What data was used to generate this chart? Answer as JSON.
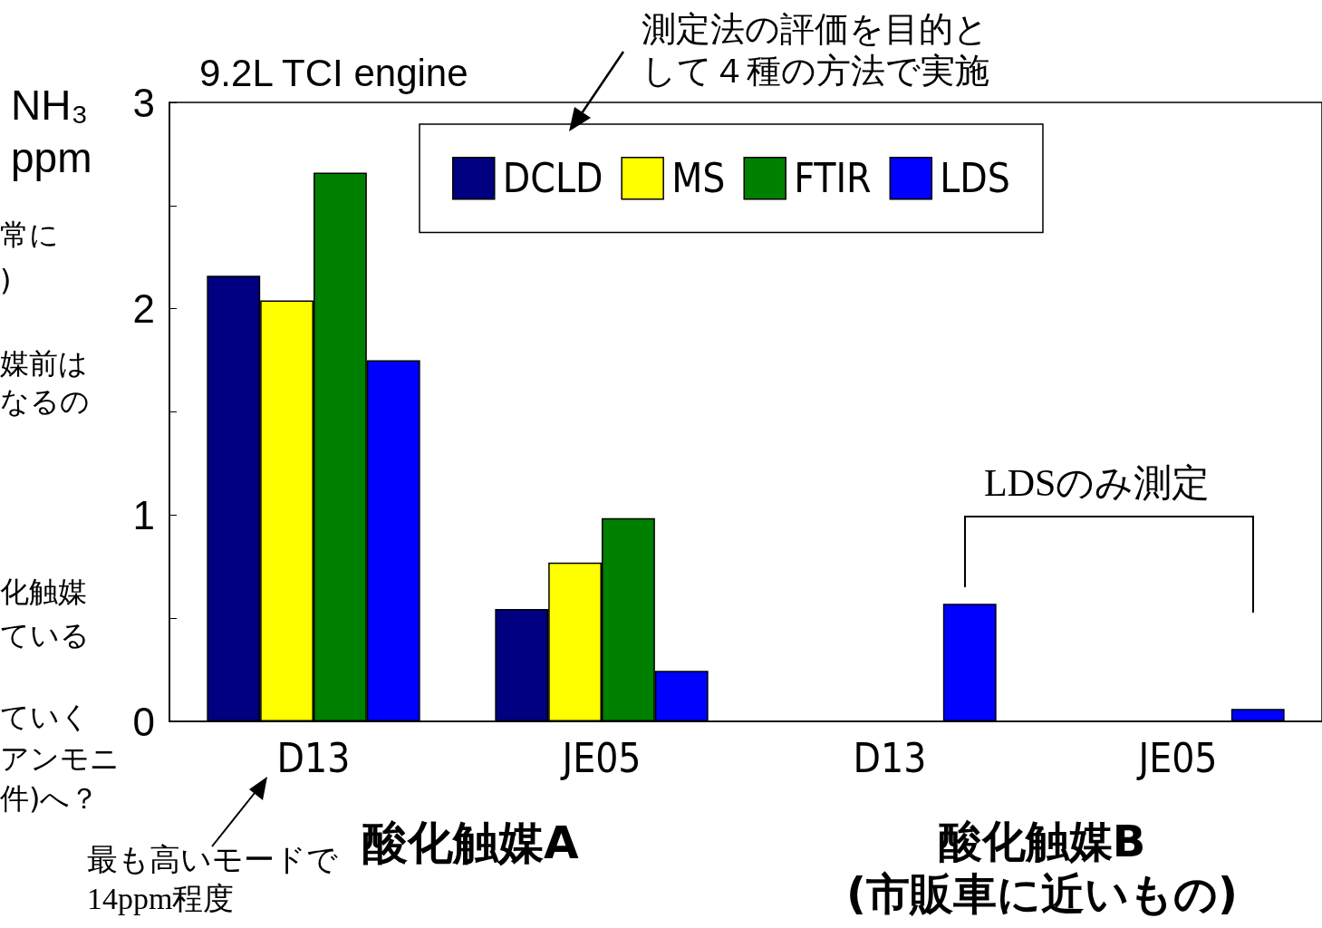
{
  "chart_data": {
    "type": "bar",
    "title": "9.2L TCI engine",
    "ylabel": "NH₃ ppm",
    "categories": [
      "D13",
      "JE05",
      "D13",
      "JE05"
    ],
    "series": [
      {
        "name": "DCLD",
        "color": "#000080",
        "values": [
          2.16,
          0.545,
          null,
          null
        ]
      },
      {
        "name": "MS",
        "color": "#ffff00",
        "values": [
          2.04,
          0.77,
          null,
          null
        ]
      },
      {
        "name": "FTIR",
        "color": "#008000",
        "values": [
          2.66,
          0.985,
          null,
          null
        ]
      },
      {
        "name": "LDS",
        "color": "#0000ff",
        "values": [
          1.75,
          0.245,
          0.57,
          0.06
        ]
      }
    ],
    "ylim": [
      0,
      3
    ],
    "yticks": [
      0,
      {
        "value": 0.5,
        "label": null
      },
      1,
      {
        "value": 1.5,
        "label": null
      },
      2,
      {
        "value": 2.5,
        "label": null
      },
      3
    ],
    "grid": false,
    "legend": "top",
    "annotations": [
      "測定法の評価を目的として４種の方法で実施",
      "LDSのみ測定",
      "最も高いモードで14ppm程度",
      "酸化触媒A",
      "酸化触媒B\n(市販車に近いもの)",
      "常に",
      ")",
      "媒前は",
      "なるの",
      "化触媒",
      "ている",
      "ていく",
      "アンモニ",
      "件)へ？"
    ]
  }
}
